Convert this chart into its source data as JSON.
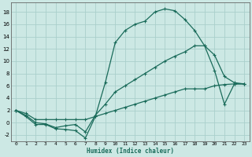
{
  "xlabel": "Humidex (Indice chaleur)",
  "background_color": "#cce8e4",
  "grid_color": "#aacfcb",
  "line_color": "#1a6b5a",
  "xlim": [
    -0.5,
    23.5
  ],
  "ylim": [
    -3.0,
    19.5
  ],
  "xticks": [
    0,
    1,
    2,
    3,
    4,
    5,
    6,
    7,
    8,
    9,
    10,
    11,
    12,
    13,
    14,
    15,
    16,
    17,
    18,
    19,
    20,
    21,
    22,
    23
  ],
  "yticks": [
    -2,
    0,
    2,
    4,
    6,
    8,
    10,
    12,
    14,
    16,
    18
  ],
  "line1_x": [
    0,
    1,
    2,
    3,
    4,
    5,
    6,
    7,
    8,
    9,
    10,
    11,
    12,
    13,
    14,
    15,
    16,
    17,
    18,
    19,
    20,
    21,
    22,
    23
  ],
  "line1_y": [
    2,
    1,
    -0.3,
    -0.3,
    -1.0,
    -1.1,
    -1.3,
    -2.5,
    1.0,
    6.5,
    13.0,
    15.0,
    16.0,
    16.5,
    18.0,
    18.5,
    18.2,
    16.8,
    15.0,
    12.5,
    11.0,
    7.5,
    6.5,
    6.3
  ],
  "line2_x": [
    0,
    1,
    2,
    3,
    4,
    5,
    6,
    7,
    8,
    9,
    10,
    11,
    12,
    13,
    14,
    15,
    16,
    17,
    18,
    19,
    20,
    21,
    22,
    23
  ],
  "line2_y": [
    2,
    1.2,
    0.0,
    -0.2,
    -0.8,
    -0.5,
    -0.3,
    -1.5,
    1.2,
    3.0,
    5.0,
    6.0,
    7.0,
    8.0,
    9.0,
    10.0,
    10.8,
    11.5,
    12.5,
    12.5,
    8.5,
    3.0,
    6.3,
    6.3
  ],
  "line3_x": [
    0,
    1,
    2,
    3,
    4,
    5,
    6,
    7,
    8,
    9,
    10,
    11,
    12,
    13,
    14,
    15,
    16,
    17,
    18,
    19,
    20,
    21,
    22,
    23
  ],
  "line3_y": [
    2,
    1.5,
    0.5,
    0.5,
    0.5,
    0.5,
    0.5,
    0.5,
    1.0,
    1.5,
    2.0,
    2.5,
    3.0,
    3.5,
    4.0,
    4.5,
    5.0,
    5.5,
    5.5,
    5.5,
    6.0,
    6.2,
    6.3,
    6.3
  ]
}
